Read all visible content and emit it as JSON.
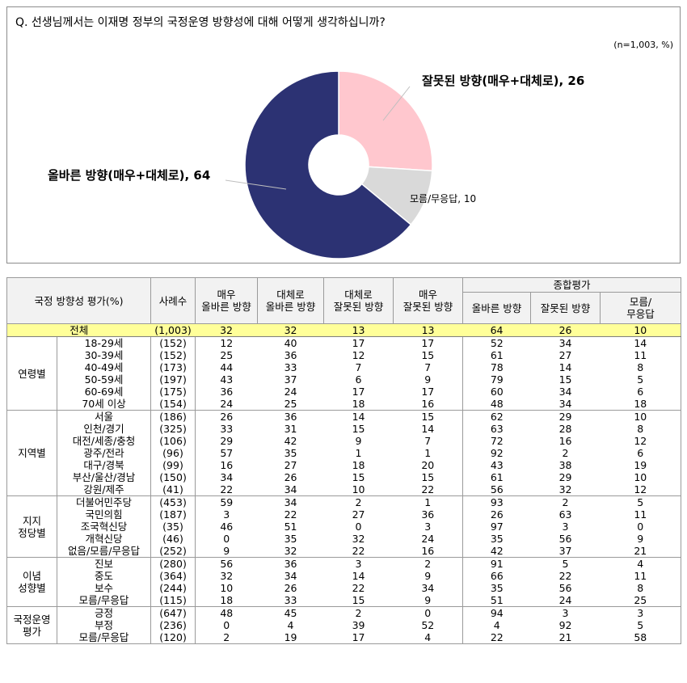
{
  "question": "Q. 선생님께서는 이재명 정부의 국정운영 방향성에 대해 어떻게 생각하십니까?",
  "sample_note": "(n=1,003,  %)",
  "colors": {
    "right": "#2c3273",
    "wrong": "#ffc7ce",
    "dk": "#d9d9d9",
    "total_bg": "#ffff99"
  },
  "chart_data": {
    "type": "pie",
    "style": "donut",
    "slices": [
      {
        "label": "잘못된 방향(매우+대체로), 26",
        "value": 26,
        "color": "#ffc7ce"
      },
      {
        "label": "모름/무응답, 10",
        "value": 10,
        "color": "#d9d9d9"
      },
      {
        "label": "올바른 방향(매우+대체로), 64",
        "value": 64,
        "color": "#2c3273"
      }
    ]
  },
  "table": {
    "header": {
      "category": "국정 방향성 평가(%)",
      "count": "사례수",
      "cols": [
        "매우\n올바른 방향",
        "대체로\n올바른 방향",
        "대체로\n잘못된 방향",
        "매우\n잘못된 방향"
      ],
      "group": "종합평가",
      "sum_cols": [
        "올바른 방향",
        "잘못된 방향",
        "모름/\n무응답"
      ]
    },
    "total": {
      "label": "전체",
      "count": "(1,003)",
      "values": [
        "32",
        "32",
        "13",
        "13",
        "64",
        "26",
        "10"
      ]
    },
    "groups": [
      {
        "name": "연령별",
        "rows": [
          {
            "label": "18-29세",
            "count": "(152)",
            "values": [
              "12",
              "40",
              "17",
              "17",
              "52",
              "34",
              "14"
            ]
          },
          {
            "label": "30-39세",
            "count": "(152)",
            "values": [
              "25",
              "36",
              "12",
              "15",
              "61",
              "27",
              "11"
            ]
          },
          {
            "label": "40-49세",
            "count": "(173)",
            "values": [
              "44",
              "33",
              "7",
              "7",
              "78",
              "14",
              "8"
            ]
          },
          {
            "label": "50-59세",
            "count": "(197)",
            "values": [
              "43",
              "37",
              "6",
              "9",
              "79",
              "15",
              "5"
            ]
          },
          {
            "label": "60-69세",
            "count": "(175)",
            "values": [
              "36",
              "24",
              "17",
              "17",
              "60",
              "34",
              "6"
            ]
          },
          {
            "label": "70세 이상",
            "count": "(154)",
            "values": [
              "24",
              "25",
              "18",
              "16",
              "48",
              "34",
              "18"
            ]
          }
        ]
      },
      {
        "name": "지역별",
        "rows": [
          {
            "label": "서울",
            "count": "(186)",
            "values": [
              "26",
              "36",
              "14",
              "15",
              "62",
              "29",
              "10"
            ]
          },
          {
            "label": "인천/경기",
            "count": "(325)",
            "values": [
              "33",
              "31",
              "15",
              "14",
              "63",
              "28",
              "8"
            ]
          },
          {
            "label": "대전/세종/충청",
            "count": "(106)",
            "values": [
              "29",
              "42",
              "9",
              "7",
              "72",
              "16",
              "12"
            ]
          },
          {
            "label": "광주/전라",
            "count": "(96)",
            "values": [
              "57",
              "35",
              "1",
              "1",
              "92",
              "2",
              "6"
            ]
          },
          {
            "label": "대구/경북",
            "count": "(99)",
            "values": [
              "16",
              "27",
              "18",
              "20",
              "43",
              "38",
              "19"
            ]
          },
          {
            "label": "부산/울산/경남",
            "count": "(150)",
            "values": [
              "34",
              "26",
              "15",
              "15",
              "61",
              "29",
              "10"
            ]
          },
          {
            "label": "강원/제주",
            "count": "(41)",
            "values": [
              "22",
              "34",
              "10",
              "22",
              "56",
              "32",
              "12"
            ]
          }
        ]
      },
      {
        "name": "지지\n정당별",
        "rows": [
          {
            "label": "더불어민주당",
            "count": "(453)",
            "values": [
              "59",
              "34",
              "2",
              "1",
              "93",
              "2",
              "5"
            ]
          },
          {
            "label": "국민의힘",
            "count": "(187)",
            "values": [
              "3",
              "22",
              "27",
              "36",
              "26",
              "63",
              "11"
            ]
          },
          {
            "label": "조국혁신당",
            "count": "(35)",
            "values": [
              "46",
              "51",
              "0",
              "3",
              "97",
              "3",
              "0"
            ]
          },
          {
            "label": "개혁신당",
            "count": "(46)",
            "values": [
              "0",
              "35",
              "32",
              "24",
              "35",
              "56",
              "9"
            ]
          },
          {
            "label": "없음/모름/무응답",
            "count": "(252)",
            "values": [
              "9",
              "32",
              "22",
              "16",
              "42",
              "37",
              "21"
            ]
          }
        ]
      },
      {
        "name": "이념\n성향별",
        "rows": [
          {
            "label": "진보",
            "count": "(280)",
            "values": [
              "56",
              "36",
              "3",
              "2",
              "91",
              "5",
              "4"
            ]
          },
          {
            "label": "중도",
            "count": "(364)",
            "values": [
              "32",
              "34",
              "14",
              "9",
              "66",
              "22",
              "11"
            ]
          },
          {
            "label": "보수",
            "count": "(244)",
            "values": [
              "10",
              "26",
              "22",
              "34",
              "35",
              "56",
              "8"
            ]
          },
          {
            "label": "모름/무응답",
            "count": "(115)",
            "values": [
              "18",
              "33",
              "15",
              "9",
              "51",
              "24",
              "25"
            ]
          }
        ]
      },
      {
        "name": "국정운영\n평가",
        "rows": [
          {
            "label": "긍정",
            "count": "(647)",
            "values": [
              "48",
              "45",
              "2",
              "0",
              "94",
              "3",
              "3"
            ]
          },
          {
            "label": "부정",
            "count": "(236)",
            "values": [
              "0",
              "4",
              "39",
              "52",
              "4",
              "92",
              "5"
            ]
          },
          {
            "label": "모름/무응답",
            "count": "(120)",
            "values": [
              "2",
              "19",
              "17",
              "4",
              "22",
              "21",
              "58"
            ]
          }
        ]
      }
    ]
  }
}
